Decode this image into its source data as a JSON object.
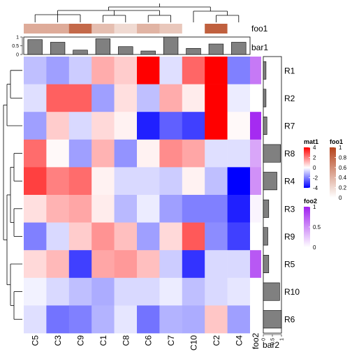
{
  "chart_data": {
    "type": "heatmap",
    "columns": [
      "C5",
      "C3",
      "C9",
      "C1",
      "C8",
      "C6",
      "C7",
      "C10",
      "C2",
      "C4"
    ],
    "rows": [
      "R1",
      "R2",
      "R7",
      "R8",
      "R4",
      "R3",
      "R9",
      "R5",
      "R10",
      "R6"
    ],
    "matrix": [
      [
        -1.0,
        -1.5,
        -0.8,
        1.3,
        0.8,
        4.0,
        -0.5,
        2.4,
        4.0,
        -2.0
      ],
      [
        -0.5,
        2.5,
        2.5,
        -1.5,
        0.5,
        -1.0,
        1.3,
        0.3,
        4.0,
        -0.3
      ],
      [
        -1.5,
        0.8,
        -0.6,
        0.6,
        0.2,
        -3.5,
        -2.5,
        -3.0,
        4.0,
        0.1
      ],
      [
        2.3,
        0.1,
        -1.5,
        1.2,
        -1.7,
        0.2,
        1.8,
        1.4,
        -0.5,
        -0.5
      ],
      [
        3.0,
        2.0,
        2.3,
        0.2,
        -0.6,
        -0.6,
        -0.8,
        0.2,
        -1.0,
        -4.0
      ],
      [
        0.5,
        1.2,
        1.4,
        0.3,
        -1.1,
        -0.3,
        -1.5,
        -2.0,
        -2.0,
        -3.5
      ],
      [
        -2.0,
        -0.6,
        0.8,
        1.7,
        1.0,
        -1.5,
        0.6,
        2.6,
        -1.8,
        -3.0
      ],
      [
        0.6,
        1.1,
        -3.0,
        1.4,
        1.6,
        1.0,
        -0.8,
        -3.2,
        -0.6,
        -0.6
      ],
      [
        -0.2,
        -0.6,
        -1.0,
        -1.3,
        -0.6,
        -0.6,
        -0.3,
        -1.0,
        -0.6,
        -0.4
      ],
      [
        -0.5,
        -2.2,
        -2.0,
        -1.2,
        -0.4,
        -2.2,
        -1.2,
        -1.3,
        0.9,
        -1.5
      ]
    ],
    "foo1": [
      0.45,
      0.45,
      0.8,
      0.35,
      0.2,
      0.4,
      0.3,
      0.0,
      0.85,
      0.0
    ],
    "bar1": [
      0.85,
      0.7,
      0.25,
      0.9,
      0.45,
      0.2,
      1.0,
      0.35,
      0.6,
      0.7
    ],
    "foo2": [
      0.6,
      0.0,
      0.95,
      0.4,
      0.5,
      0.05,
      0.0,
      0.75,
      0.0,
      0.0
    ],
    "bar2": [
      0.15,
      0.15,
      0.2,
      0.95,
      0.75,
      0.3,
      0.25,
      0.3,
      0.9,
      1.0
    ],
    "annotation_labels": {
      "foo1": "foo1",
      "bar1": "bar1",
      "foo2": "foo2",
      "bar2": "bar2"
    },
    "bar_axis_ticks": [
      "0",
      "0.5",
      "1"
    ],
    "legends": [
      {
        "title": "mat1",
        "ticks": [
          "4",
          "2",
          "0",
          "-2",
          "-4"
        ],
        "colors": [
          "#ff0000",
          "#ffffff",
          "#0000ff"
        ]
      },
      {
        "title": "foo1",
        "ticks": [
          "1",
          "0.8",
          "0.6",
          "0.4",
          "0.2",
          "0"
        ],
        "colors": [
          "#b5441c",
          "#ffffff"
        ]
      },
      {
        "title": "foo2",
        "ticks": [
          "1",
          "0.5",
          "0"
        ],
        "colors": [
          "#a020f0",
          "#ffffff"
        ]
      }
    ]
  }
}
